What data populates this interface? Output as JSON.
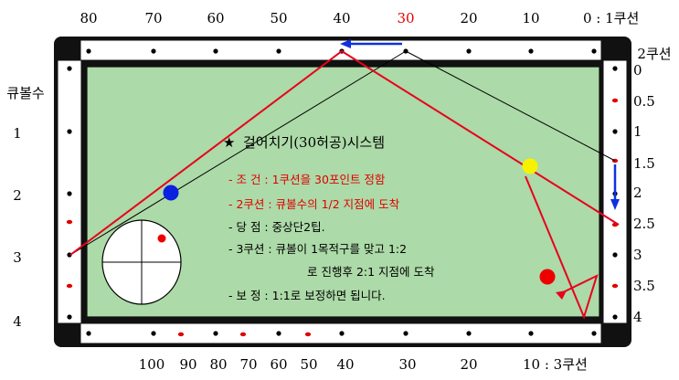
{
  "top_labels": [
    "80",
    "70",
    "60",
    "50",
    "40",
    "30",
    "20",
    "10",
    "0 : 1쿠션"
  ],
  "top_label_highlight_index": 5,
  "bottom_labels": [
    "100",
    "90",
    "80",
    "70",
    "60",
    "50",
    "40",
    "30",
    "20",
    "10 : 3쿠션"
  ],
  "right_title": "2쿠션",
  "right_labels": [
    "0",
    "0.5",
    "1",
    "1.5",
    "2",
    "2.5",
    "3",
    "3.5",
    "4"
  ],
  "left_title": "큐볼수",
  "left_labels": [
    "1",
    "2",
    "3",
    "4"
  ],
  "diagram_title": "걸어치기(30허공)시스템",
  "star": "★",
  "notes": [
    {
      "text": "- 조 건 : 1쿠션을 30포인트 정함",
      "color": "#e00000"
    },
    {
      "text": "- 2쿠션 : 큐볼수의 1/2 지점에 도착",
      "color": "#e00000"
    },
    {
      "text": "- 당 점 : 중상단2팁.",
      "color": "#000000"
    },
    {
      "text": "- 3쿠션 : 큐볼이 1목적구를 맞고 1:2",
      "color": "#000000"
    },
    {
      "text": "로 진행후 2:1 지점에 도착",
      "color": "#000000"
    },
    {
      "text": "- 보 정 : 1:1로 보정하면 됩니다.",
      "color": "#000000"
    }
  ],
  "colors": {
    "table_frame": "#111111",
    "cloth": "#acdaa8",
    "path_red": "#e8001c",
    "guide_line": "#000000",
    "arrow_blue": "#1030e0",
    "ball_blue": "#0a22e0",
    "ball_yellow": "#f6f200",
    "ball_red": "#ee0000"
  }
}
